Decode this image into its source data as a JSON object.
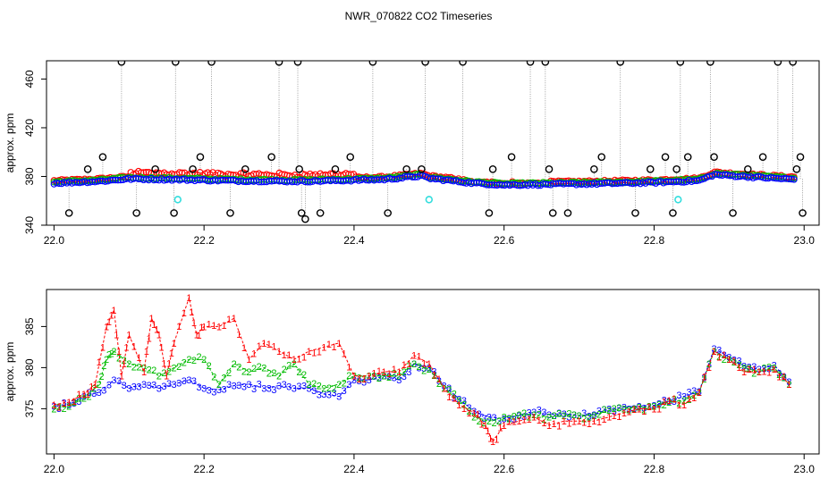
{
  "title": "NWR_070822  CO2 Timeseries",
  "colors": {
    "frame": "#000000",
    "black": "#000000",
    "red": "#ff0000",
    "green": "#00bb00",
    "blue": "#0000ff",
    "cyan": "#33dddd",
    "gray": "#888888"
  },
  "chart_data": [
    {
      "type": "scatter",
      "ylabel": "approx. ppm",
      "xlim": [
        21.99,
        23.02
      ],
      "ylim": [
        340,
        475
      ],
      "x_ticks": [
        22.0,
        22.2,
        22.4,
        22.6,
        22.8,
        23.0
      ],
      "x_tick_labels": [
        "22.0",
        "22.2",
        "22.4",
        "22.6",
        "22.8",
        "23.0"
      ],
      "y_ticks": [
        340,
        380,
        420,
        460
      ],
      "y_tick_labels": [
        "340",
        "380",
        "420",
        "460"
      ],
      "baseline_knots": [
        [
          22.0,
          375
        ],
        [
          22.06,
          376.5
        ],
        [
          22.1,
          378.5
        ],
        [
          22.16,
          378
        ],
        [
          22.24,
          377
        ],
        [
          22.33,
          376.5
        ],
        [
          22.44,
          378
        ],
        [
          22.49,
          381
        ],
        [
          22.5,
          379
        ],
        [
          22.56,
          375
        ],
        [
          22.6,
          373.5
        ],
        [
          22.66,
          374
        ],
        [
          22.72,
          374.5
        ],
        [
          22.8,
          375.5
        ],
        [
          22.86,
          377
        ],
        [
          22.88,
          382
        ],
        [
          22.96,
          379
        ],
        [
          22.99,
          378
        ]
      ],
      "excursions": [
        [
          22.02,
          350
        ],
        [
          22.045,
          386
        ],
        [
          22.065,
          396
        ],
        [
          22.09,
          474
        ],
        [
          22.11,
          350
        ],
        [
          22.135,
          386
        ],
        [
          22.16,
          350
        ],
        [
          22.162,
          474
        ],
        [
          22.185,
          386
        ],
        [
          22.195,
          396
        ],
        [
          22.21,
          474
        ],
        [
          22.235,
          350
        ],
        [
          22.255,
          386
        ],
        [
          22.29,
          396
        ],
        [
          22.3,
          474
        ],
        [
          22.325,
          474
        ],
        [
          22.327,
          386
        ],
        [
          22.33,
          350
        ],
        [
          22.335,
          345
        ],
        [
          22.355,
          350
        ],
        [
          22.375,
          386
        ],
        [
          22.395,
          396
        ],
        [
          22.425,
          474
        ],
        [
          22.445,
          350
        ],
        [
          22.47,
          386
        ],
        [
          22.49,
          386
        ],
        [
          22.495,
          474
        ],
        [
          22.545,
          474
        ],
        [
          22.58,
          350
        ],
        [
          22.585,
          386
        ],
        [
          22.61,
          396
        ],
        [
          22.635,
          474
        ],
        [
          22.655,
          474
        ],
        [
          22.66,
          386
        ],
        [
          22.665,
          350
        ],
        [
          22.685,
          350
        ],
        [
          22.72,
          386
        ],
        [
          22.73,
          396
        ],
        [
          22.755,
          474
        ],
        [
          22.775,
          350
        ],
        [
          22.795,
          386
        ],
        [
          22.815,
          396
        ],
        [
          22.825,
          350
        ],
        [
          22.83,
          386
        ],
        [
          22.835,
          474
        ],
        [
          22.845,
          396
        ],
        [
          22.875,
          474
        ],
        [
          22.88,
          396
        ],
        [
          22.905,
          350
        ],
        [
          22.925,
          386
        ],
        [
          22.945,
          396
        ],
        [
          22.965,
          474
        ],
        [
          22.985,
          474
        ],
        [
          22.99,
          386
        ],
        [
          22.995,
          396
        ],
        [
          22.998,
          350
        ]
      ],
      "cyan_points": [
        [
          22.165,
          361
        ],
        [
          22.5,
          361
        ],
        [
          22.832,
          361
        ]
      ],
      "series": [
        {
          "name": "red",
          "color": "#ff0000",
          "offset": 1.5
        },
        {
          "name": "green",
          "color": "#00bb00",
          "offset": 0.5
        },
        {
          "name": "blue",
          "color": "#0000ff",
          "offset": -0.5
        }
      ]
    },
    {
      "type": "scatter",
      "ylabel": "approx. ppm",
      "xlim": [
        21.99,
        23.02
      ],
      "ylim": [
        369.5,
        389.5
      ],
      "x_ticks": [
        22.0,
        22.2,
        22.4,
        22.6,
        22.8,
        23.0
      ],
      "x_tick_labels": [
        "22.0",
        "22.2",
        "22.4",
        "22.6",
        "22.8",
        "23.0"
      ],
      "y_ticks": [
        375,
        380,
        385
      ],
      "y_tick_labels": [
        "375",
        "380",
        "385"
      ],
      "series": [
        {
          "name": "1",
          "label": "1",
          "color": "#ff0000",
          "points": [
            [
              22.0,
              375.5
            ],
            [
              22.02,
              375.8
            ],
            [
              22.04,
              376.8
            ],
            [
              22.055,
              378
            ],
            [
              22.07,
              385
            ],
            [
              22.08,
              387
            ],
            [
              22.09,
              379
            ],
            [
              22.1,
              384
            ],
            [
              22.12,
              379.5
            ],
            [
              22.13,
              386
            ],
            [
              22.14,
              384
            ],
            [
              22.15,
              379
            ],
            [
              22.16,
              383
            ],
            [
              22.18,
              388.5
            ],
            [
              22.19,
              384
            ],
            [
              22.2,
              385
            ],
            [
              22.22,
              385
            ],
            [
              22.24,
              386
            ],
            [
              22.26,
              381
            ],
            [
              22.28,
              383
            ],
            [
              22.3,
              382
            ],
            [
              22.32,
              381
            ],
            [
              22.34,
              382
            ],
            [
              22.36,
              382.5
            ],
            [
              22.38,
              383
            ],
            [
              22.4,
              379
            ],
            [
              22.42,
              379
            ],
            [
              22.44,
              379.5
            ],
            [
              22.46,
              379.5
            ],
            [
              22.48,
              381.5
            ],
            [
              22.5,
              380.5
            ],
            [
              22.52,
              377.5
            ],
            [
              22.54,
              375.5
            ],
            [
              22.56,
              374.5
            ],
            [
              22.575,
              373
            ],
            [
              22.585,
              371
            ],
            [
              22.6,
              373
            ],
            [
              22.62,
              373.5
            ],
            [
              22.64,
              374
            ],
            [
              22.66,
              373
            ],
            [
              22.68,
              373.5
            ],
            [
              22.7,
              373.5
            ],
            [
              22.72,
              373.5
            ],
            [
              22.74,
              374
            ],
            [
              22.76,
              374.5
            ],
            [
              22.78,
              375
            ],
            [
              22.8,
              375
            ],
            [
              22.82,
              376
            ],
            [
              22.84,
              375.5
            ],
            [
              22.86,
              377
            ],
            [
              22.88,
              382
            ],
            [
              22.9,
              381
            ],
            [
              22.92,
              379.5
            ],
            [
              22.94,
              379.5
            ],
            [
              22.96,
              379.8
            ],
            [
              22.98,
              378
            ]
          ]
        },
        {
          "name": "2",
          "label": "2",
          "color": "#00bb00",
          "points": [
            [
              22.0,
              375
            ],
            [
              22.02,
              375.3
            ],
            [
              22.04,
              376.3
            ],
            [
              22.06,
              378
            ],
            [
              22.07,
              381
            ],
            [
              22.08,
              382
            ],
            [
              22.1,
              380.5
            ],
            [
              22.12,
              380
            ],
            [
              22.14,
              379
            ],
            [
              22.16,
              380
            ],
            [
              22.18,
              381
            ],
            [
              22.2,
              381
            ],
            [
              22.22,
              378
            ],
            [
              22.24,
              380.5
            ],
            [
              22.26,
              379.5
            ],
            [
              22.28,
              380
            ],
            [
              22.3,
              379
            ],
            [
              22.32,
              380.5
            ],
            [
              22.34,
              378
            ],
            [
              22.36,
              377.5
            ],
            [
              22.38,
              378
            ],
            [
              22.4,
              379
            ],
            [
              22.42,
              379
            ],
            [
              22.44,
              379
            ],
            [
              22.46,
              379
            ],
            [
              22.48,
              380.5
            ],
            [
              22.5,
              379.8
            ],
            [
              22.52,
              377.5
            ],
            [
              22.54,
              376
            ],
            [
              22.56,
              374
            ],
            [
              22.58,
              373.5
            ],
            [
              22.6,
              374
            ],
            [
              22.62,
              374.3
            ],
            [
              22.64,
              374.3
            ],
            [
              22.66,
              374
            ],
            [
              22.68,
              374.2
            ],
            [
              22.7,
              374.2
            ],
            [
              22.72,
              374.2
            ],
            [
              22.74,
              374.8
            ],
            [
              22.76,
              375
            ],
            [
              22.78,
              375.2
            ],
            [
              22.8,
              375.3
            ],
            [
              22.82,
              375.8
            ],
            [
              22.84,
              376
            ],
            [
              22.86,
              377
            ],
            [
              22.88,
              382
            ],
            [
              22.9,
              381
            ],
            [
              22.92,
              380
            ],
            [
              22.94,
              379.5
            ],
            [
              22.96,
              380
            ],
            [
              22.98,
              378
            ]
          ]
        },
        {
          "name": "3",
          "label": "3",
          "color": "#0000ff",
          "points": [
            [
              22.0,
              375.3
            ],
            [
              22.02,
              375.5
            ],
            [
              22.04,
              376.5
            ],
            [
              22.06,
              377
            ],
            [
              22.08,
              378.5
            ],
            [
              22.1,
              377.5
            ],
            [
              22.12,
              378
            ],
            [
              22.14,
              377.5
            ],
            [
              22.16,
              378
            ],
            [
              22.18,
              378.5
            ],
            [
              22.2,
              377.5
            ],
            [
              22.22,
              377.3
            ],
            [
              22.24,
              377.8
            ],
            [
              22.26,
              378
            ],
            [
              22.28,
              377.5
            ],
            [
              22.3,
              377.8
            ],
            [
              22.32,
              377.5
            ],
            [
              22.34,
              377.5
            ],
            [
              22.36,
              376.8
            ],
            [
              22.38,
              376.5
            ],
            [
              22.4,
              378.5
            ],
            [
              22.42,
              378.5
            ],
            [
              22.44,
              379
            ],
            [
              22.46,
              378.5
            ],
            [
              22.48,
              380.5
            ],
            [
              22.5,
              380
            ],
            [
              22.52,
              377.8
            ],
            [
              22.54,
              376.2
            ],
            [
              22.56,
              374.7
            ],
            [
              22.58,
              374
            ],
            [
              22.6,
              373.8
            ],
            [
              22.62,
              374.2
            ],
            [
              22.64,
              374.6
            ],
            [
              22.66,
              374.3
            ],
            [
              22.68,
              374.4
            ],
            [
              22.7,
              374.2
            ],
            [
              22.72,
              374.3
            ],
            [
              22.74,
              375
            ],
            [
              22.76,
              375.2
            ],
            [
              22.78,
              375.3
            ],
            [
              22.8,
              375.4
            ],
            [
              22.82,
              375.9
            ],
            [
              22.84,
              376.5
            ],
            [
              22.86,
              377.1
            ],
            [
              22.88,
              382.3
            ],
            [
              22.9,
              381.3
            ],
            [
              22.92,
              380.2
            ],
            [
              22.94,
              379.8
            ],
            [
              22.96,
              380.3
            ],
            [
              22.98,
              378.3
            ]
          ]
        }
      ]
    }
  ]
}
